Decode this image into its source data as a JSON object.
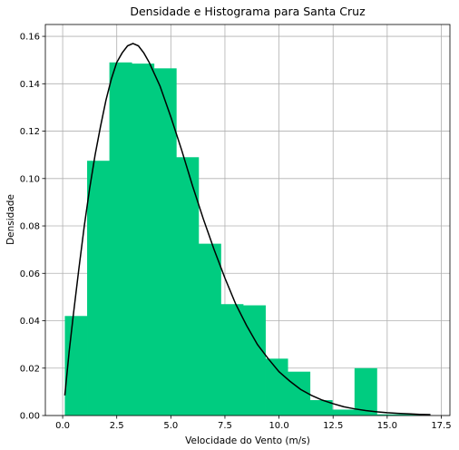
{
  "chart_data": {
    "type": "bar",
    "title": "Densidade e Histograma para Santa Cruz",
    "xlabel": "Velocidade do Vento (m/s)",
    "ylabel": "Densidade",
    "xlim": [
      -0.8,
      17.9
    ],
    "ylim": [
      0.0,
      0.165
    ],
    "xticks": [
      0.0,
      2.5,
      5.0,
      7.5,
      10.0,
      12.5,
      15.0,
      17.5
    ],
    "xtick_labels": [
      "0.0",
      "2.5",
      "5.0",
      "7.5",
      "10.0",
      "12.5",
      "15.0",
      "17.5"
    ],
    "yticks": [
      0.0,
      0.02,
      0.04,
      0.06,
      0.08,
      0.1,
      0.12,
      0.14,
      0.16
    ],
    "ytick_labels": [
      "0.00",
      "0.02",
      "0.04",
      "0.06",
      "0.08",
      "0.10",
      "0.12",
      "0.14",
      "0.16"
    ],
    "grid": true,
    "bar_color": "#00cc80",
    "line_color": "#000000",
    "histogram": {
      "bin_edges": [
        0.1,
        1.13,
        2.16,
        3.19,
        4.22,
        5.25,
        6.28,
        7.31,
        8.34,
        9.37,
        10.4,
        11.43,
        12.46,
        13.49,
        14.52,
        15.55,
        16.58,
        17.61
      ],
      "values": [
        0.042,
        0.1075,
        0.149,
        0.1485,
        0.1465,
        0.109,
        0.0725,
        0.047,
        0.0465,
        0.024,
        0.0185,
        0.0065,
        0.0025,
        0.02,
        0.0005,
        0.0005,
        0.0
      ]
    },
    "density_curve": {
      "x": [
        0.1,
        0.3,
        0.5,
        0.75,
        1.0,
        1.25,
        1.5,
        1.75,
        2.0,
        2.25,
        2.5,
        2.75,
        3.0,
        3.25,
        3.5,
        3.75,
        4.0,
        4.5,
        5.0,
        5.5,
        6.0,
        6.5,
        7.0,
        7.5,
        8.0,
        8.5,
        9.0,
        9.5,
        10.0,
        10.5,
        11.0,
        11.5,
        12.0,
        12.5,
        13.0,
        13.5,
        14.0,
        14.5,
        15.0,
        15.5,
        16.0,
        16.5,
        17.0
      ],
      "y": [
        0.0085,
        0.027,
        0.043,
        0.062,
        0.08,
        0.096,
        0.11,
        0.122,
        0.133,
        0.142,
        0.149,
        0.153,
        0.156,
        0.157,
        0.156,
        0.153,
        0.149,
        0.139,
        0.126,
        0.112,
        0.097,
        0.083,
        0.07,
        0.058,
        0.047,
        0.038,
        0.03,
        0.024,
        0.0185,
        0.0145,
        0.011,
        0.0085,
        0.0065,
        0.005,
        0.0037,
        0.0028,
        0.0021,
        0.0016,
        0.0012,
        0.0009,
        0.0007,
        0.0005,
        0.0004
      ]
    }
  }
}
